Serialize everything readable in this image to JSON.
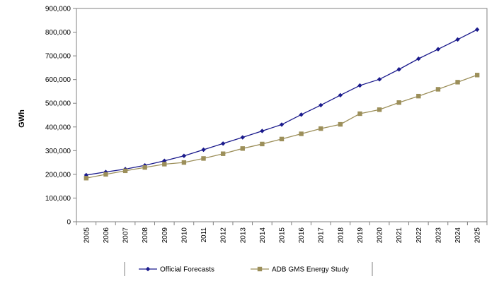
{
  "chart_data": {
    "type": "line",
    "title": "",
    "xlabel": "",
    "ylabel": "GWh",
    "ylim": [
      0,
      900000
    ],
    "yticks": [
      0,
      100000,
      200000,
      300000,
      400000,
      500000,
      600000,
      700000,
      800000,
      900000
    ],
    "ytick_labels": [
      "0",
      "100,000",
      "200,000",
      "300,000",
      "400,000",
      "500,000",
      "600,000",
      "700,000",
      "800,000",
      "900,000"
    ],
    "grid": false,
    "legend_position": "bottom",
    "categories": [
      "2005",
      "2006",
      "2007",
      "2008",
      "2009",
      "2010",
      "2011",
      "2012",
      "2013",
      "2014",
      "2015",
      "2016",
      "2017",
      "2018",
      "2019",
      "2020",
      "2021",
      "2022",
      "2023",
      "2024",
      "2025"
    ],
    "series": [
      {
        "name": "Official Forecasts",
        "color": "#1a1a8c",
        "marker": "diamond",
        "values": [
          197000,
          210000,
          222000,
          238000,
          257000,
          278000,
          304000,
          330000,
          356000,
          383000,
          410000,
          452000,
          492000,
          534000,
          575000,
          601000,
          643000,
          688000,
          728000,
          769000,
          811000
        ]
      },
      {
        "name": "ADB GMS Energy Study",
        "color": "#9c8f5a",
        "marker": "square",
        "values": [
          184000,
          200000,
          215000,
          229000,
          243000,
          250000,
          267000,
          287000,
          309000,
          328000,
          349000,
          371000,
          393000,
          411000,
          456000,
          473000,
          503000,
          530000,
          559000,
          589000,
          619000
        ]
      }
    ]
  }
}
